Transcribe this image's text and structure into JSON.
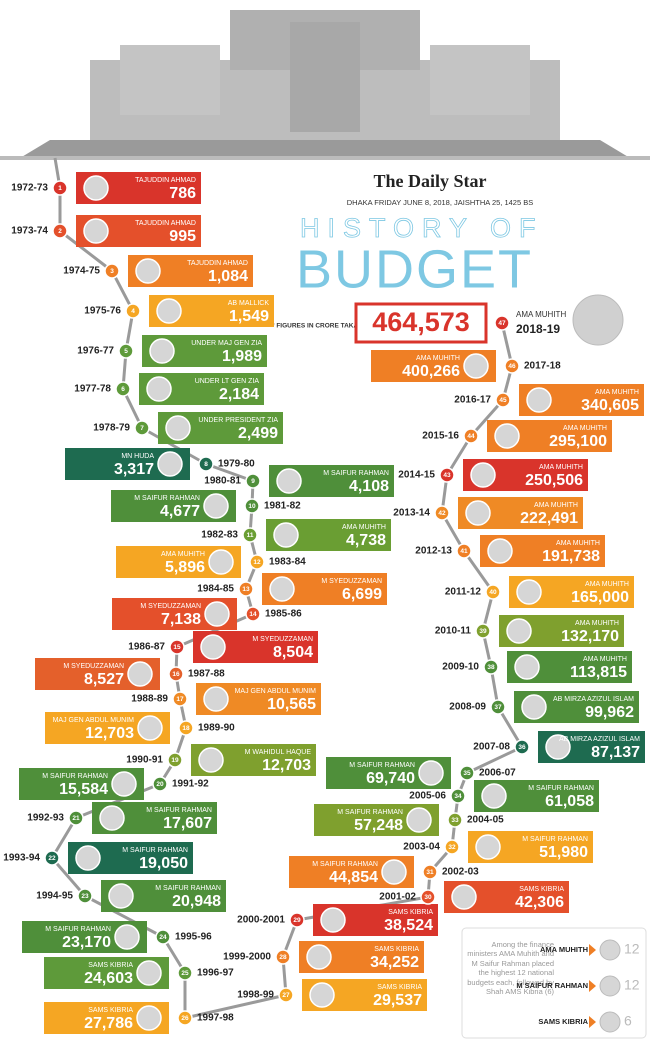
{
  "header": {
    "brand": "The Daily Star",
    "dateline": "DHAKA FRIDAY JUNE 8, 2018, JAISHTHA 25, 1425 BS",
    "title_top": "HISTORY OF",
    "title_main": "BUDGET",
    "note": "* FIGURES IN CRORE TAKA"
  },
  "budgets": [
    {
      "no": 1,
      "year": "1972-73",
      "minister": "TAJUDDIN AHMAD",
      "amount": "786",
      "color": "#d9342b"
    },
    {
      "no": 2,
      "year": "1973-74",
      "minister": "TAJUDDIN AHMAD",
      "amount": "995",
      "color": "#e4502b"
    },
    {
      "no": 3,
      "year": "1974-75",
      "minister": "TAJUDDIN AHMAD",
      "amount": "1,084",
      "color": "#ef7f25"
    },
    {
      "no": 4,
      "year": "1975-76",
      "minister": "AB MALLICK",
      "amount": "1,549",
      "color": "#f5a623"
    },
    {
      "no": 5,
      "year": "1976-77",
      "minister": "UNDER MAJ GEN ZIA",
      "amount": "1,989",
      "color": "#5e9a3a"
    },
    {
      "no": 6,
      "year": "1977-78",
      "minister": "UNDER LT GEN  ZIA",
      "amount": "2,184",
      "color": "#5e9a3a"
    },
    {
      "no": 7,
      "year": "1978-79",
      "minister": "UNDER PRESIDENT ZIA",
      "amount": "2,499",
      "color": "#5e9a3a"
    },
    {
      "no": 8,
      "year": "1979-80",
      "minister": "MN HUDA",
      "amount": "3,317",
      "color": "#1e6b50"
    },
    {
      "no": 9,
      "year": "1980-81",
      "minister": "M SAIFUR RAHMAN",
      "amount": "4,108",
      "color": "#4f8f3a"
    },
    {
      "no": 10,
      "year": "1981-82",
      "minister": "M SAIFUR RAHMAN",
      "amount": "4,677",
      "color": "#4f8f3a"
    },
    {
      "no": 11,
      "year": "1982-83",
      "minister": "AMA MUHITH",
      "amount": "4,738",
      "color": "#6a9e33"
    },
    {
      "no": 12,
      "year": "1983-84",
      "minister": "AMA MUHITH",
      "amount": "5,896",
      "color": "#f5a623"
    },
    {
      "no": 13,
      "year": "1984-85",
      "minister": "M SYEDUZZAMAN",
      "amount": "6,699",
      "color": "#ef7f25"
    },
    {
      "no": 14,
      "year": "1985-86",
      "minister": "M SYEDUZZAMAN",
      "amount": "7,138",
      "color": "#e4502b"
    },
    {
      "no": 15,
      "year": "1986-87",
      "minister": "M SYEDUZZAMAN",
      "amount": "8,504",
      "color": "#d9342b"
    },
    {
      "no": 16,
      "year": "1987-88",
      "minister": "M SYEDUZZAMAN",
      "amount": "8,527",
      "color": "#e4602b"
    },
    {
      "no": 17,
      "year": "1988-89",
      "minister": "MAJ GEN ABDUL MUNIM",
      "amount": "10,565",
      "color": "#ef8a25"
    },
    {
      "no": 18,
      "year": "1989-90",
      "minister": "MAJ GEN ABDUL MUNIM",
      "amount": "12,703",
      "color": "#f5a623"
    },
    {
      "no": 19,
      "year": "1990-91",
      "minister": "M WAHIDUL HAQUE",
      "amount": "12,703",
      "color": "#7fa02e"
    },
    {
      "no": 20,
      "year": "1991-92",
      "minister": "M SAIFUR RAHMAN",
      "amount": "15,584",
      "color": "#4f8f3a"
    },
    {
      "no": 21,
      "year": "1992-93",
      "minister": "M SAIFUR  RAHMAN",
      "amount": "17,607",
      "color": "#4f8f3a"
    },
    {
      "no": 22,
      "year": "1993-94",
      "minister": "M SAIFUR RAHMAN",
      "amount": "19,050",
      "color": "#1e6b50"
    },
    {
      "no": 23,
      "year": "1994-95",
      "minister": "M SAIFUR RAHMAN",
      "amount": "20,948",
      "color": "#4f8f3a"
    },
    {
      "no": 24,
      "year": "1995-96",
      "minister": "M SAIFUR RAHMAN",
      "amount": "23,170",
      "color": "#4f8f3a"
    },
    {
      "no": 25,
      "year": "1996-97",
      "minister": "SAMS KIBRIA",
      "amount": "24,603",
      "color": "#5e9a3a"
    },
    {
      "no": 26,
      "year": "1997-98",
      "minister": "SAMS KIBRIA",
      "amount": "27,786",
      "color": "#f5a623"
    },
    {
      "no": 27,
      "year": "1998-99",
      "minister": "SAMS KIBRIA",
      "amount": "29,537",
      "color": "#f5a623"
    },
    {
      "no": 28,
      "year": "1999-2000",
      "minister": "SAMS KIBRIA",
      "amount": "34,252",
      "color": "#ef7f25"
    },
    {
      "no": 29,
      "year": "2000-2001",
      "minister": "SAMS KIBRIA",
      "amount": "38,524",
      "color": "#d9342b"
    },
    {
      "no": 30,
      "year": "2001-02",
      "minister": "SAMS KIBRIA",
      "amount": "42,306",
      "color": "#e4502b"
    },
    {
      "no": 31,
      "year": "2002-03",
      "minister": "M SAIFUR RAHMAN",
      "amount": "44,854",
      "color": "#ef7f25"
    },
    {
      "no": 32,
      "year": "2003-04",
      "minister": "M SAIFUR RAHMAN",
      "amount": "51,980",
      "color": "#f5a623"
    },
    {
      "no": 33,
      "year": "2004-05",
      "minister": "M SAIFUR RAHMAN",
      "amount": "57,248",
      "color": "#7fa02e"
    },
    {
      "no": 34,
      "year": "2005-06",
      "minister": "M SAIFUR RAHMAN",
      "amount": "61,058",
      "color": "#4f8f3a"
    },
    {
      "no": 35,
      "year": "2006-07",
      "minister": "M SAIFUR RAHMAN",
      "amount": "69,740",
      "color": "#4f8f3a"
    },
    {
      "no": 36,
      "year": "2007-08",
      "minister": "AB MIRZA AZIZUL ISLAM",
      "amount": "87,137",
      "color": "#1e6b50"
    },
    {
      "no": 37,
      "year": "2008-09",
      "minister": "AB MIRZA AZIZUL ISLAM",
      "amount": "99,962",
      "color": "#4f8f3a"
    },
    {
      "no": 38,
      "year": "2009-10",
      "minister": "AMA MUHITH",
      "amount": "113,815",
      "color": "#4f8f3a"
    },
    {
      "no": 39,
      "year": "2010-11",
      "minister": "AMA MUHITH",
      "amount": "132,170",
      "color": "#7fa02e"
    },
    {
      "no": 40,
      "year": "2011-12",
      "minister": "AMA MUHITH",
      "amount": "165,000",
      "color": "#f5a623"
    },
    {
      "no": 41,
      "year": "2012-13",
      "minister": "AMA MUHITH",
      "amount": "191,738",
      "color": "#ef7f25"
    },
    {
      "no": 42,
      "year": "2013-14",
      "minister": "AMA MUHITH",
      "amount": "222,491",
      "color": "#ef8a25"
    },
    {
      "no": 43,
      "year": "2014-15",
      "minister": "AMA MUHITH",
      "amount": "250,506",
      "color": "#d9342b"
    },
    {
      "no": 44,
      "year": "2015-16",
      "minister": "AMA MUHITH",
      "amount": "295,100",
      "color": "#ef7f25"
    },
    {
      "no": 45,
      "year": "2016-17",
      "minister": "AMA MUHITH",
      "amount": "340,605",
      "color": "#ef7f25"
    },
    {
      "no": 46,
      "year": "2017-18",
      "minister": "AMA MUHITH",
      "amount": "400,266",
      "color": "#ef7f25"
    },
    {
      "no": 47,
      "year": "2018-19",
      "minister": "AMA MUHITH",
      "amount": "464,573",
      "color": "#d9342b"
    }
  ],
  "legend": {
    "note": "Among the finance ministers AMA Muhith and M Saifur Rahman placed the highest 12 national budgets each, followed by Shah AMS Kibria (6)",
    "items": [
      {
        "name": "AMA MUHITH",
        "count": 12
      },
      {
        "name": "M SAIFUR RAHMAN",
        "count": 12
      },
      {
        "name": "SAMS KIBRIA",
        "count": 6
      }
    ]
  }
}
